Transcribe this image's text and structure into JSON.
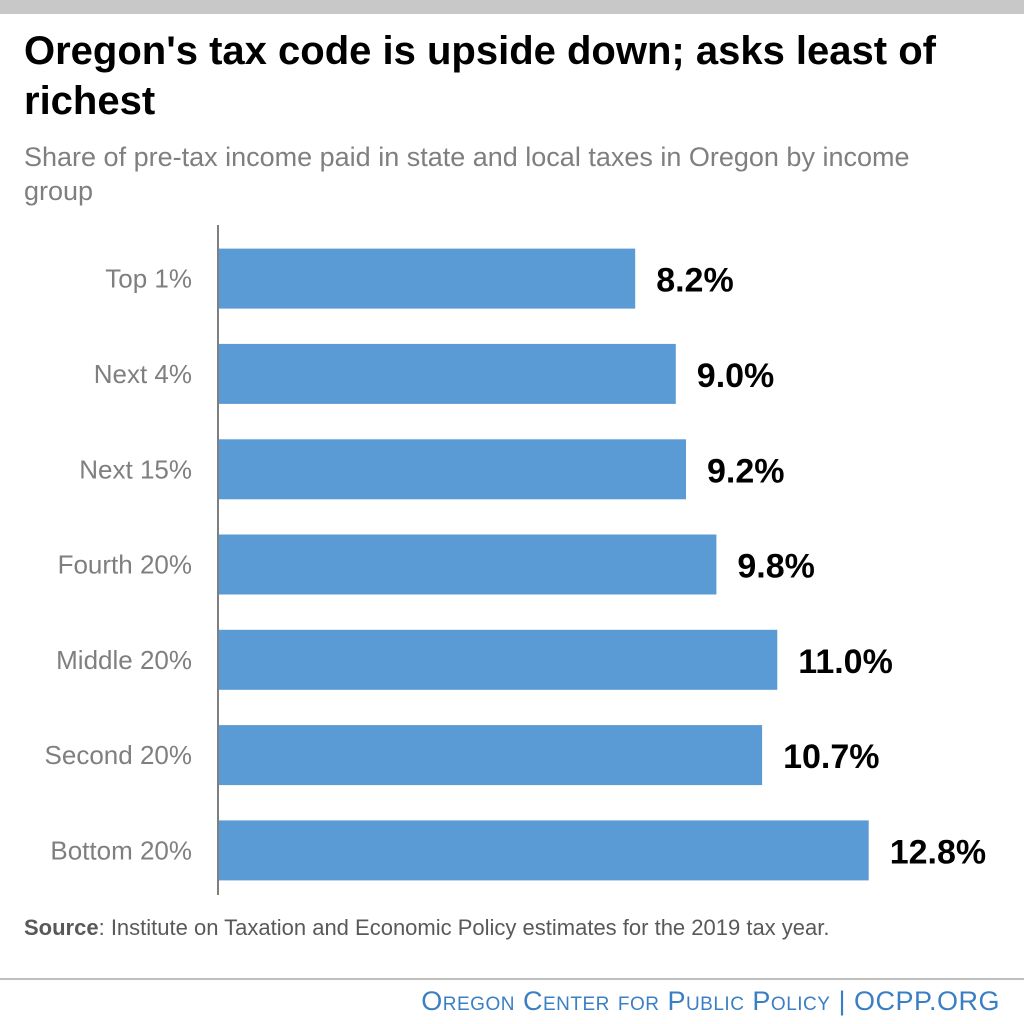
{
  "header": {
    "title": "Oregon's tax code is upside down; asks least of richest",
    "subtitle": "Share of pre-tax income paid in state and local taxes in Oregon by income group"
  },
  "chart_data": {
    "type": "bar",
    "orientation": "horizontal",
    "categories": [
      "Top 1%",
      "Next 4%",
      "Next 15%",
      "Fourth 20%",
      "Middle 20%",
      "Second 20%",
      "Bottom 20%"
    ],
    "values": [
      8.2,
      9.0,
      9.2,
      9.8,
      11.0,
      10.7,
      12.8
    ],
    "value_labels": [
      "8.2%",
      "9.0%",
      "9.2%",
      "9.8%",
      "11.0%",
      "10.7%",
      "12.8%"
    ],
    "title": "Oregon's tax code is upside down; asks least of richest",
    "subtitle": "Share of pre-tax income paid in state and local taxes in Oregon by income group",
    "xlim": [
      0,
      13.2
    ],
    "grid": false,
    "legend": "none",
    "bar_color": "#5b9bd5",
    "axis_color": "#7f7f7f",
    "label_color": "#7f7f7f"
  },
  "footer": {
    "source_label": "Source",
    "source_text": ": Institute on Taxation and Economic Policy estimates for the 2019 tax year.",
    "brand": "Oregon Center for Public Policy | OCPP.ORG"
  }
}
